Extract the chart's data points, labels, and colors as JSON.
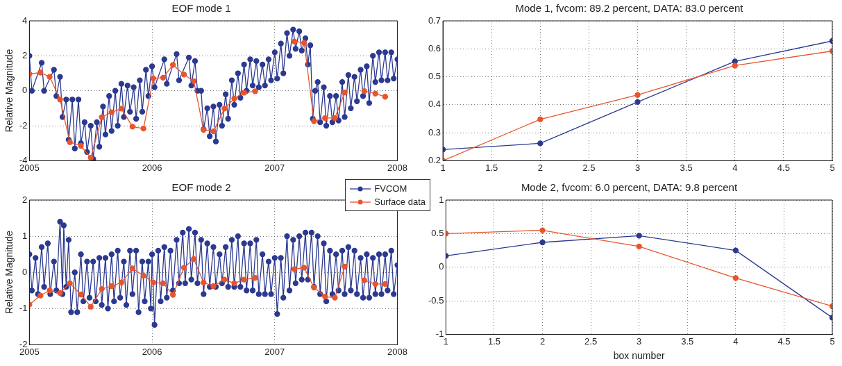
{
  "chart_data": [
    {
      "type": "line",
      "title": "EOF mode 1",
      "ylabel": "Relative Magnitude",
      "xlim": [
        2005,
        2008
      ],
      "xticks": [
        2005,
        2006,
        2007,
        2008
      ],
      "ylim": [
        -4,
        4
      ],
      "yticks": [
        -4,
        -2,
        0,
        2,
        4
      ],
      "grid": true,
      "marker": "circle",
      "legend": false,
      "series": [
        {
          "color": "#2b3990",
          "x": [
            2005.0,
            2005.02,
            2005.1,
            2005.12,
            2005.2,
            2005.22,
            2005.25,
            2005.27,
            2005.3,
            2005.32,
            2005.35,
            2005.37,
            2005.4,
            2005.42,
            2005.45,
            2005.47,
            2005.5,
            2005.52,
            2005.55,
            2005.57,
            2005.6,
            2005.62,
            2005.65,
            2005.67,
            2005.7,
            2005.72,
            2005.75,
            2005.77,
            2005.8,
            2005.82,
            2005.85,
            2005.87,
            2005.9,
            2005.92,
            2005.95,
            2005.97,
            2006.0,
            2006.02,
            2006.1,
            2006.12,
            2006.2,
            2006.22,
            2006.3,
            2006.32,
            2006.35,
            2006.37,
            2006.4,
            2006.42,
            2006.45,
            2006.47,
            2006.5,
            2006.52,
            2006.55,
            2006.57,
            2006.6,
            2006.62,
            2006.65,
            2006.67,
            2006.7,
            2006.72,
            2006.75,
            2006.77,
            2006.8,
            2006.82,
            2006.85,
            2006.87,
            2006.9,
            2006.92,
            2006.95,
            2006.97,
            2007.0,
            2007.02,
            2007.05,
            2007.07,
            2007.1,
            2007.12,
            2007.15,
            2007.17,
            2007.2,
            2007.22,
            2007.25,
            2007.27,
            2007.29,
            2007.31,
            2007.33,
            2007.35,
            2007.37,
            2007.4,
            2007.42,
            2007.45,
            2007.47,
            2007.5,
            2007.52,
            2007.55,
            2007.57,
            2007.6,
            2007.62,
            2007.65,
            2007.67,
            2007.7,
            2007.72,
            2007.75,
            2007.77,
            2007.8,
            2007.82,
            2007.85,
            2007.87,
            2007.9,
            2007.92,
            2007.95,
            2007.97,
            2008.0
          ],
          "values": [
            2.0,
            0.0,
            1.6,
            0.0,
            1.2,
            -0.3,
            0.8,
            -1.5,
            -0.5,
            -2.8,
            -0.5,
            -3.3,
            -0.5,
            -3.0,
            -1.8,
            -3.5,
            -2.0,
            -3.9,
            -1.8,
            -3.2,
            -0.9,
            -2.5,
            -0.3,
            -2.3,
            0.0,
            -2.0,
            0.4,
            -1.5,
            0.3,
            -1.2,
            0.2,
            -1.6,
            0.6,
            -1.2,
            1.2,
            -0.3,
            1.4,
            0.2,
            1.8,
            0.4,
            2.1,
            0.6,
            1.9,
            0.3,
            1.7,
            0.0,
            0.0,
            -2.2,
            -1.0,
            -2.6,
            -0.9,
            -2.9,
            -0.8,
            -2.0,
            -0.2,
            -1.6,
            0.6,
            -0.8,
            1.0,
            -0.4,
            1.5,
            0.0,
            1.8,
            0.3,
            1.7,
            0.2,
            1.5,
            0.3,
            1.8,
            0.6,
            2.2,
            0.7,
            2.7,
            1.0,
            3.3,
            2.0,
            3.5,
            2.4,
            3.4,
            2.3,
            3.0,
            1.5,
            2.6,
            -1.6,
            0.0,
            0.5,
            -1.8,
            0.2,
            -2.0,
            -0.3,
            -1.8,
            -0.3,
            -1.7,
            0.5,
            -1.5,
            0.9,
            -1.0,
            0.8,
            -0.6,
            1.2,
            -0.3,
            1.4,
            -0.7,
            2.0,
            0.5,
            2.2,
            0.6,
            2.2,
            0.6,
            2.2,
            0.7,
            1.8
          ]
        },
        {
          "color": "#e8552d",
          "x": [
            2005.0,
            2005.09,
            2005.165,
            2005.25,
            2005.33,
            2005.42,
            2005.5,
            2005.59,
            2005.67,
            2005.75,
            2005.84,
            2005.93,
            2006.01,
            2006.09,
            2006.17,
            2006.26,
            2006.34,
            2006.42,
            2006.5,
            2006.59,
            2006.67,
            2006.75,
            2006.84,
            2007.0,
            2007.16,
            2007.24,
            2007.32,
            2007.41,
            2007.49,
            2007.57,
            2007.65,
            2007.73,
            2007.82,
            2007.9
          ],
          "values": [
            0.96,
            1.04,
            0.8,
            -0.5,
            -2.94,
            -3.15,
            -3.83,
            -1.51,
            -1.23,
            -1.02,
            -2.05,
            -2.16,
            0.71,
            0.75,
            1.48,
            0.93,
            0.55,
            -2.24,
            -2.32,
            -1.02,
            -0.44,
            -0.11,
            -0.03,
            null,
            2.82,
            2.74,
            -1.74,
            -1.56,
            -1.56,
            -0.1,
            null,
            -0.02,
            -0.16,
            -0.34
          ]
        }
      ]
    },
    {
      "type": "line",
      "title": "Mode 1, fvcom: 89.2 percent, DATA: 83.0 percent",
      "xlim": [
        1,
        5
      ],
      "xticks": [
        1,
        1.5,
        2,
        2.5,
        3,
        3.5,
        4,
        4.5,
        5
      ],
      "ylim": [
        0.2,
        0.7
      ],
      "yticks": [
        0.2,
        0.3,
        0.4,
        0.5,
        0.6,
        0.7
      ],
      "grid": true,
      "marker": "circle",
      "legend": false,
      "x": [
        1,
        2,
        3,
        4,
        5
      ],
      "series": [
        {
          "color": "#2b3990",
          "values": [
            0.24,
            0.262,
            0.41,
            0.555,
            0.628
          ]
        },
        {
          "color": "#e8552d",
          "values": [
            0.2,
            0.348,
            0.435,
            0.54,
            0.592
          ]
        }
      ]
    },
    {
      "type": "line",
      "title": "EOF mode 2",
      "ylabel": "Relative Magnitude",
      "xlim": [
        2005,
        2008
      ],
      "xticks": [
        2005,
        2006,
        2007,
        2008
      ],
      "ylim": [
        -2,
        2
      ],
      "yticks": [
        -2,
        -1,
        0,
        1,
        2
      ],
      "grid": true,
      "marker": "circle",
      "legend": "top right",
      "series": [
        {
          "name": "FVCOM",
          "color": "#2b3990",
          "x": [
            2005.0,
            2005.02,
            2005.05,
            2005.07,
            2005.1,
            2005.12,
            2005.15,
            2005.17,
            2005.2,
            2005.22,
            2005.25,
            2005.27,
            2005.28,
            2005.3,
            2005.32,
            2005.34,
            2005.37,
            2005.39,
            2005.42,
            2005.44,
            2005.47,
            2005.49,
            2005.52,
            2005.54,
            2005.57,
            2005.59,
            2005.62,
            2005.64,
            2005.67,
            2005.69,
            2005.72,
            2005.74,
            2005.77,
            2005.79,
            2005.82,
            2005.84,
            2005.87,
            2005.89,
            2005.92,
            2005.94,
            2005.97,
            2005.99,
            2006.0,
            2006.02,
            2006.05,
            2006.07,
            2006.1,
            2006.12,
            2006.15,
            2006.17,
            2006.2,
            2006.22,
            2006.25,
            2006.27,
            2006.3,
            2006.32,
            2006.35,
            2006.37,
            2006.4,
            2006.42,
            2006.45,
            2006.47,
            2006.5,
            2006.52,
            2006.55,
            2006.57,
            2006.6,
            2006.62,
            2006.65,
            2006.67,
            2006.7,
            2006.72,
            2006.75,
            2006.77,
            2006.8,
            2006.82,
            2006.85,
            2006.87,
            2006.9,
            2006.92,
            2006.95,
            2006.97,
            2007.0,
            2007.02,
            2007.05,
            2007.07,
            2007.1,
            2007.12,
            2007.15,
            2007.17,
            2007.2,
            2007.22,
            2007.25,
            2007.27,
            2007.3,
            2007.32,
            2007.35,
            2007.37,
            2007.4,
            2007.42,
            2007.45,
            2007.47,
            2007.5,
            2007.52,
            2007.55,
            2007.57,
            2007.6,
            2007.62,
            2007.65,
            2007.67,
            2007.7,
            2007.72,
            2007.75,
            2007.77,
            2007.8,
            2007.82,
            2007.85,
            2007.87,
            2007.9,
            2007.92,
            2007.95,
            2007.97,
            2008.0
          ],
          "values": [
            0.5,
            -0.5,
            0.4,
            -0.6,
            0.7,
            -0.4,
            0.8,
            -0.6,
            0.3,
            -0.5,
            1.4,
            -0.6,
            1.3,
            -0.4,
            0.9,
            -1.1,
            0.0,
            -1.1,
            0.5,
            -0.8,
            0.3,
            -0.7,
            0.3,
            -0.8,
            0.4,
            -0.9,
            0.4,
            -1.0,
            0.5,
            -0.8,
            0.6,
            -0.7,
            0.3,
            -0.9,
            0.6,
            -0.6,
            0.6,
            -1.1,
            0.3,
            -0.8,
            0.3,
            -1.0,
            0.5,
            -1.45,
            0.6,
            -0.8,
            0.7,
            -0.7,
            0.6,
            -0.5,
            0.9,
            -0.3,
            1.1,
            -0.3,
            1.2,
            -0.2,
            1.1,
            -0.3,
            0.9,
            -0.6,
            0.8,
            -0.4,
            0.7,
            -0.4,
            0.5,
            -0.3,
            0.7,
            -0.4,
            0.9,
            -0.4,
            1.0,
            -0.4,
            0.8,
            -0.5,
            0.8,
            -0.5,
            0.9,
            -0.6,
            0.5,
            -0.6,
            0.3,
            -0.6,
            0.4,
            -1.15,
            0.4,
            -0.7,
            1.0,
            -0.5,
            0.9,
            -0.3,
            1.0,
            -0.2,
            1.1,
            -0.2,
            1.1,
            -0.4,
            1.0,
            -0.6,
            0.8,
            -0.8,
            0.6,
            -0.6,
            0.5,
            -0.5,
            0.6,
            -0.6,
            0.7,
            -0.5,
            0.6,
            -0.6,
            0.4,
            -0.7,
            0.5,
            -0.7,
            0.4,
            -0.6,
            0.5,
            -0.6,
            0.5,
            -0.5,
            0.6,
            -0.6,
            0.2
          ]
        },
        {
          "name": "Surface data",
          "color": "#e8552d",
          "x": [
            2005.0,
            2005.09,
            2005.165,
            2005.25,
            2005.33,
            2005.42,
            2005.5,
            2005.59,
            2005.67,
            2005.75,
            2005.84,
            2005.93,
            2006.01,
            2006.09,
            2006.17,
            2006.26,
            2006.34,
            2006.42,
            2006.5,
            2006.59,
            2006.67,
            2006.75,
            2006.84,
            2007.0,
            2007.16,
            2007.24,
            2007.32,
            2007.41,
            2007.49,
            2007.57,
            2007.65,
            2007.73,
            2007.82,
            2007.9
          ],
          "values": [
            -0.89,
            -0.64,
            -0.5,
            -0.57,
            -0.3,
            -0.61,
            -0.95,
            -0.46,
            -0.38,
            -0.28,
            0.11,
            -0.09,
            -0.28,
            -0.3,
            -0.62,
            0.13,
            0.37,
            -0.28,
            -0.38,
            -0.2,
            -0.3,
            -0.2,
            -0.15,
            null,
            0.09,
            0.13,
            -0.42,
            -0.67,
            -0.7,
            0.16,
            null,
            -0.22,
            -0.32,
            -0.32
          ]
        }
      ]
    },
    {
      "type": "line",
      "title": "Mode 2, fvcom: 6.0 percent, DATA: 9.8 percent",
      "xlabel": "box number",
      "xlim": [
        1,
        5
      ],
      "xticks": [
        1,
        1.5,
        2,
        2.5,
        3,
        3.5,
        4,
        4.5,
        5
      ],
      "ylim": [
        -1,
        1
      ],
      "yticks": [
        -1,
        -0.5,
        0,
        0.5,
        1
      ],
      "grid": true,
      "marker": "circle",
      "legend": false,
      "x": [
        1,
        2,
        3,
        4,
        5
      ],
      "series": [
        {
          "color": "#2b3990",
          "values": [
            0.17,
            0.37,
            0.47,
            0.25,
            -0.75
          ]
        },
        {
          "color": "#e8552d",
          "values": [
            0.5,
            0.55,
            0.31,
            -0.16,
            -0.58
          ]
        }
      ]
    }
  ]
}
